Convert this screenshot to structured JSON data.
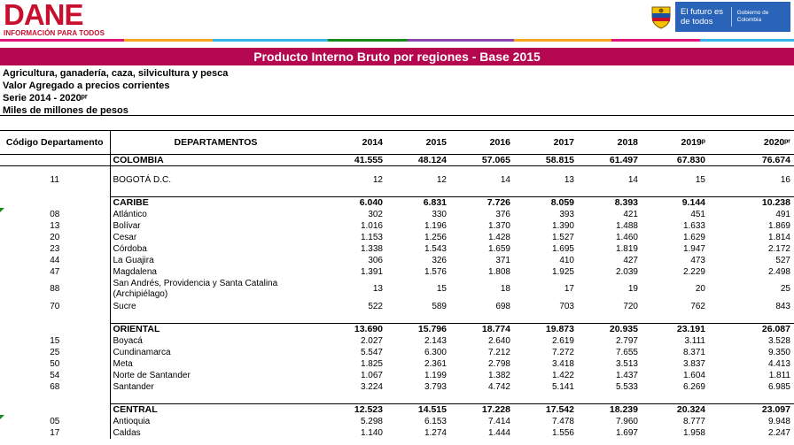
{
  "header": {
    "logo_text": "DANE",
    "logo_sub": "INFORMACIÓN PARA TODOS",
    "gov_main": "El futuro es de todos",
    "gov_sub": "Gobierno de Colombia"
  },
  "stripe_colors": [
    "#e3137c",
    "#f5a623",
    "#36b3e6",
    "#1a8a1a",
    "#8e44ad",
    "#f5a623",
    "#e3137c",
    "#36b3e6"
  ],
  "title": "Producto Interno Bruto por regiones - Base 2015",
  "meta": {
    "line1": "Agricultura, ganadería, caza, silvicultura y pesca",
    "line2": "Valor Agregado a precios corrientes",
    "line3": "Serie 2014 - 2020ᵖʳ",
    "line4": "Miles de millones de pesos"
  },
  "table": {
    "headers": {
      "code": "Código Departamento",
      "dept": "DEPARTAMENTOS",
      "years": [
        "2014",
        "2015",
        "2016",
        "2017",
        "2018",
        "2019ᵖ",
        "2020ᵖʳ"
      ]
    },
    "colombia": {
      "code": "",
      "name": "COLOMBIA",
      "values": [
        "41.555",
        "48.124",
        "57.065",
        "58.815",
        "61.497",
        "67.830",
        "76.674"
      ]
    },
    "bogota": {
      "code": "11",
      "name": "BOGOTÁ D.C.",
      "values": [
        "12",
        "12",
        "14",
        "13",
        "14",
        "15",
        "16"
      ]
    },
    "caribe": {
      "name": "CARIBE",
      "values": [
        "6.040",
        "6.831",
        "7.726",
        "8.059",
        "8.393",
        "9.144",
        "10.238"
      ],
      "rows": [
        {
          "code": "08",
          "name": "Atlántico",
          "values": [
            "302",
            "330",
            "376",
            "393",
            "421",
            "451",
            "491"
          ]
        },
        {
          "code": "13",
          "name": "Bolívar",
          "values": [
            "1.016",
            "1.196",
            "1.370",
            "1.390",
            "1.488",
            "1.633",
            "1.869"
          ]
        },
        {
          "code": "20",
          "name": "Cesar",
          "values": [
            "1.153",
            "1.256",
            "1.428",
            "1.527",
            "1.460",
            "1.629",
            "1.814"
          ]
        },
        {
          "code": "23",
          "name": "Córdoba",
          "values": [
            "1.338",
            "1.543",
            "1.659",
            "1.695",
            "1.819",
            "1.947",
            "2.172"
          ]
        },
        {
          "code": "44",
          "name": "La Guajira",
          "values": [
            "306",
            "326",
            "371",
            "410",
            "427",
            "473",
            "527"
          ]
        },
        {
          "code": "47",
          "name": "Magdalena",
          "values": [
            "1.391",
            "1.576",
            "1.808",
            "1.925",
            "2.039",
            "2.229",
            "2.498"
          ]
        },
        {
          "code": "88",
          "name": "San Andrés, Providencia y Santa Catalina (Archipiélago)",
          "values": [
            "13",
            "15",
            "18",
            "17",
            "19",
            "20",
            "25"
          ]
        },
        {
          "code": "70",
          "name": "Sucre",
          "values": [
            "522",
            "589",
            "698",
            "703",
            "720",
            "762",
            "843"
          ]
        }
      ]
    },
    "oriental": {
      "name": "ORIENTAL",
      "values": [
        "13.690",
        "15.796",
        "18.774",
        "19.873",
        "20.935",
        "23.191",
        "26.087"
      ],
      "rows": [
        {
          "code": "15",
          "name": "Boyacá",
          "values": [
            "2.027",
            "2.143",
            "2.640",
            "2.619",
            "2.797",
            "3.111",
            "3.528"
          ]
        },
        {
          "code": "25",
          "name": "Cundinamarca",
          "values": [
            "5.547",
            "6.300",
            "7.212",
            "7.272",
            "7.655",
            "8.371",
            "9.350"
          ]
        },
        {
          "code": "50",
          "name": "Meta",
          "values": [
            "1.825",
            "2.361",
            "2.798",
            "3.418",
            "3.513",
            "3.837",
            "4.413"
          ]
        },
        {
          "code": "54",
          "name": "Norte de Santander",
          "values": [
            "1.067",
            "1.199",
            "1.382",
            "1.422",
            "1.437",
            "1.604",
            "1.811"
          ]
        },
        {
          "code": "68",
          "name": "Santander",
          "values": [
            "3.224",
            "3.793",
            "4.742",
            "5.141",
            "5.533",
            "6.269",
            "6.985"
          ]
        }
      ]
    },
    "central": {
      "name": "CENTRAL",
      "values": [
        "12.523",
        "14.515",
        "17.228",
        "17.542",
        "18.239",
        "20.324",
        "23.097"
      ],
      "rows": [
        {
          "code": "05",
          "name": "Antioquia",
          "values": [
            "5.298",
            "6.153",
            "7.414",
            "7.478",
            "7.960",
            "8.777",
            "9.948"
          ]
        },
        {
          "code": "17",
          "name": "Caldas",
          "values": [
            "1.140",
            "1.274",
            "1.444",
            "1.556",
            "1.697",
            "1.958",
            "2.247"
          ]
        }
      ]
    }
  }
}
